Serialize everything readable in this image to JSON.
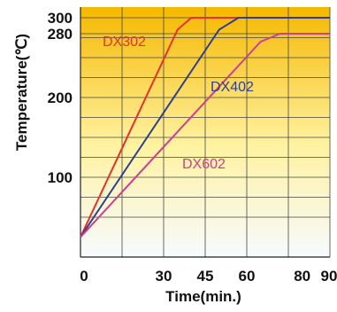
{
  "chart_data": {
    "type": "line",
    "xlabel": "Time(min.)",
    "ylabel": "Temperature(℃)",
    "xlim": [
      0,
      90
    ],
    "ylim": [
      0,
      300
    ],
    "x_ticks": [
      0,
      30,
      45,
      60,
      80,
      90
    ],
    "y_ticks": [
      100,
      200,
      280,
      300
    ],
    "x_tick_labels": [
      "0",
      "30",
      "45",
      "60",
      "80",
      "90"
    ],
    "y_tick_labels": [
      "100",
      "200",
      "280",
      "300"
    ],
    "grid": true,
    "series": [
      {
        "name": "DX302",
        "color": "#e8302a",
        "x": [
          0,
          35,
          40,
          90
        ],
        "y": [
          25,
          285,
          300,
          300
        ]
      },
      {
        "name": "DX402",
        "color": "#2e3f8f",
        "x": [
          0,
          50,
          57,
          90
        ],
        "y": [
          25,
          285,
          300,
          300
        ]
      },
      {
        "name": "DX602",
        "color": "#cc3f8e",
        "x": [
          0,
          65,
          72,
          90
        ],
        "y": [
          25,
          270,
          280,
          280
        ]
      }
    ]
  },
  "colors": {
    "background_top": "#f5b800",
    "background_mid": "#fff2a0",
    "background_bottom": "#f6fbff",
    "grid": "#444444"
  }
}
